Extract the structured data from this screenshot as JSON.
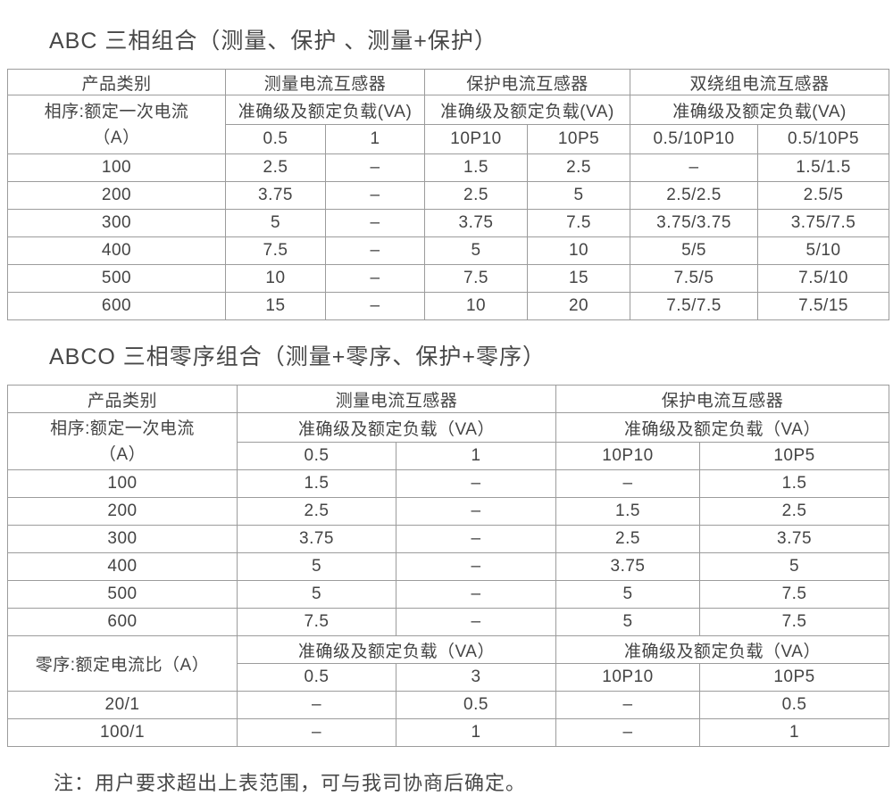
{
  "page": {
    "background": "#ffffff",
    "text_color": "#414141",
    "border_color": "#9c9c9c"
  },
  "section1": {
    "title": "ABC 三相组合（测量、保护 、测量+保护）",
    "table": {
      "col1_header": "产品类别",
      "group_headers": [
        "测量电流互感器",
        "保护电流互感器",
        "双绕组电流互感器"
      ],
      "row_label_line1": "相序:额定一次电流",
      "row_label_line2": "（A）",
      "accuracy_header": "准确级及额定负载(VA)",
      "sub_headers": [
        "0.5",
        "1",
        "10P10",
        "10P5",
        "0.5/10P10",
        "0.5/10P5"
      ],
      "rows": [
        [
          "100",
          "2.5",
          "–",
          "1.5",
          "2.5",
          "–",
          "1.5/1.5"
        ],
        [
          "200",
          "3.75",
          "–",
          "2.5",
          "5",
          "2.5/2.5",
          "2.5/5"
        ],
        [
          "300",
          "5",
          "–",
          "3.75",
          "7.5",
          "3.75/3.75",
          "3.75/7.5"
        ],
        [
          "400",
          "7.5",
          "–",
          "5",
          "10",
          "5/5",
          "5/10"
        ],
        [
          "500",
          "10",
          "–",
          "7.5",
          "15",
          "7.5/5",
          "7.5/10"
        ],
        [
          "600",
          "15",
          "–",
          "10",
          "20",
          "7.5/7.5",
          "7.5/15"
        ]
      ]
    }
  },
  "section2": {
    "title": "ABCO 三相零序组合（测量+零序、保护+零序）",
    "table": {
      "col1_header": "产品类别",
      "group_headers": [
        "测量电流互感器",
        "保护电流互感器"
      ],
      "row_label_line1": "相序:额定一次电流",
      "row_label_line2": "（A）",
      "accuracy_header": "准确级及额定负载（VA）",
      "sub_headers": [
        "0.5",
        "1",
        "10P10",
        "10P5"
      ],
      "rows": [
        [
          "100",
          "1.5",
          "–",
          "–",
          "1.5"
        ],
        [
          "200",
          "2.5",
          "–",
          "1.5",
          "2.5"
        ],
        [
          "300",
          "3.75",
          "–",
          "2.5",
          "3.75"
        ],
        [
          "400",
          "5",
          "–",
          "3.75",
          "5"
        ],
        [
          "500",
          "5",
          "–",
          "5",
          "7.5"
        ],
        [
          "600",
          "7.5",
          "–",
          "5",
          "7.5"
        ]
      ],
      "zero_seq_label": "零序:额定电流比（A）",
      "zero_accuracy_header": "准确级及额定负载（VA）",
      "zero_sub_headers": [
        "0.5",
        "3",
        "10P10",
        "10P5"
      ],
      "zero_rows": [
        [
          "20/1",
          "–",
          "0.5",
          "–",
          "0.5"
        ],
        [
          "100/1",
          "–",
          "1",
          "–",
          "1"
        ]
      ]
    }
  },
  "note": "注：用户要求超出上表范围，可与我司协商后确定。"
}
